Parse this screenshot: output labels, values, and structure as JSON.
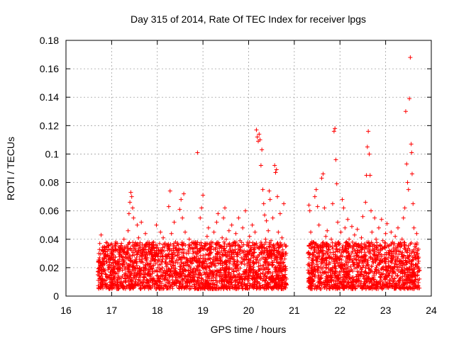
{
  "chart_data": {
    "type": "scatter",
    "title": "Day 315 of 2014, Rate Of TEC Index for receiver lpgs",
    "xlabel": "GPS time / hours",
    "ylabel": "ROTI / TECUs",
    "xlim": [
      16,
      24
    ],
    "ylim": [
      0,
      0.18
    ],
    "xticks": [
      "16",
      "17",
      "18",
      "19",
      "20",
      "21",
      "22",
      "23",
      "24"
    ],
    "xtick_values": [
      16,
      17,
      18,
      19,
      20,
      21,
      22,
      23,
      24
    ],
    "yticks": [
      "0",
      "0.02",
      "0.04",
      "0.06",
      "0.08",
      "0.1",
      "0.12",
      "0.14",
      "0.16",
      "0.18"
    ],
    "ytick_values": [
      0,
      0.02,
      0.04,
      0.06,
      0.08,
      0.1,
      0.12,
      0.14,
      0.16,
      0.18
    ],
    "grid": true,
    "marker": "+",
    "color": "#ff0000",
    "series": [
      {
        "name": "ROTI",
        "points": [
          [
            16.7,
            0.015
          ],
          [
            16.72,
            0.03
          ],
          [
            16.74,
            0.037
          ],
          [
            16.75,
            0.022
          ],
          [
            16.77,
            0.043
          ],
          [
            16.79,
            0.01
          ],
          [
            16.8,
            0.026
          ],
          [
            16.82,
            0.018
          ],
          [
            16.84,
            0.033
          ],
          [
            16.86,
            0.008
          ],
          [
            16.88,
            0.024
          ],
          [
            16.9,
            0.035
          ],
          [
            16.93,
            0.014
          ],
          [
            16.95,
            0.028
          ],
          [
            16.98,
            0.02
          ],
          [
            17.0,
            0.031
          ],
          [
            17.03,
            0.012
          ],
          [
            17.06,
            0.025
          ],
          [
            17.09,
            0.038
          ],
          [
            17.12,
            0.016
          ],
          [
            17.15,
            0.022
          ],
          [
            17.18,
            0.034
          ],
          [
            17.21,
            0.01
          ],
          [
            17.24,
            0.027
          ],
          [
            17.27,
            0.04
          ],
          [
            17.3,
            0.019
          ],
          [
            17.33,
            0.031
          ],
          [
            17.36,
            0.046
          ],
          [
            17.38,
            0.058
          ],
          [
            17.4,
            0.066
          ],
          [
            17.42,
            0.073
          ],
          [
            17.44,
            0.07
          ],
          [
            17.46,
            0.062
          ],
          [
            17.48,
            0.055
          ],
          [
            17.5,
            0.035
          ],
          [
            17.53,
            0.024
          ],
          [
            17.56,
            0.05
          ],
          [
            17.59,
            0.041
          ],
          [
            17.62,
            0.028
          ],
          [
            17.65,
            0.052
          ],
          [
            17.68,
            0.033
          ],
          [
            17.71,
            0.018
          ],
          [
            17.74,
            0.044
          ],
          [
            17.77,
            0.026
          ],
          [
            17.8,
            0.036
          ],
          [
            17.83,
            0.015
          ],
          [
            17.86,
            0.03
          ],
          [
            17.89,
            0.021
          ],
          [
            17.92,
            0.038
          ],
          [
            17.95,
            0.028
          ],
          [
            17.98,
            0.05
          ],
          [
            18.01,
            0.034
          ],
          [
            18.04,
            0.022
          ],
          [
            18.07,
            0.045
          ],
          [
            18.1,
            0.03
          ],
          [
            18.13,
            0.041
          ],
          [
            18.16,
            0.018
          ],
          [
            18.19,
            0.026
          ],
          [
            18.22,
            0.036
          ],
          [
            18.25,
            0.063
          ],
          [
            18.28,
            0.074
          ],
          [
            18.31,
            0.044
          ],
          [
            18.34,
            0.028
          ],
          [
            18.37,
            0.052
          ],
          [
            18.4,
            0.038
          ],
          [
            18.43,
            0.016
          ],
          [
            18.46,
            0.032
          ],
          [
            18.49,
            0.061
          ],
          [
            18.52,
            0.068
          ],
          [
            18.55,
            0.055
          ],
          [
            18.58,
            0.072
          ],
          [
            18.61,
            0.045
          ],
          [
            18.64,
            0.03
          ],
          [
            18.67,
            0.022
          ],
          [
            18.7,
            0.04
          ],
          [
            18.73,
            0.019
          ],
          [
            18.76,
            0.034
          ],
          [
            18.79,
            0.012
          ],
          [
            18.82,
            0.027
          ],
          [
            18.85,
            0.036
          ],
          [
            18.88,
            0.101
          ],
          [
            18.91,
            0.025
          ],
          [
            18.94,
            0.055
          ],
          [
            18.97,
            0.062
          ],
          [
            19.0,
            0.071
          ],
          [
            19.03,
            0.035
          ],
          [
            19.06,
            0.019
          ],
          [
            19.09,
            0.042
          ],
          [
            19.12,
            0.048
          ],
          [
            19.15,
            0.03
          ],
          [
            19.18,
            0.038
          ],
          [
            19.21,
            0.024
          ],
          [
            19.24,
            0.045
          ],
          [
            19.27,
            0.033
          ],
          [
            19.3,
            0.052
          ],
          [
            19.33,
            0.058
          ],
          [
            19.36,
            0.036
          ],
          [
            19.39,
            0.026
          ],
          [
            19.42,
            0.041
          ],
          [
            19.45,
            0.055
          ],
          [
            19.48,
            0.062
          ],
          [
            19.51,
            0.04
          ],
          [
            19.54,
            0.028
          ],
          [
            19.57,
            0.046
          ],
          [
            19.6,
            0.035
          ],
          [
            19.63,
            0.05
          ],
          [
            19.66,
            0.022
          ],
          [
            19.69,
            0.038
          ],
          [
            19.72,
            0.044
          ],
          [
            19.75,
            0.03
          ],
          [
            19.78,
            0.055
          ],
          [
            19.81,
            0.039
          ],
          [
            19.84,
            0.027
          ],
          [
            19.87,
            0.048
          ],
          [
            19.9,
            0.032
          ],
          [
            19.93,
            0.06
          ],
          [
            19.96,
            0.036
          ],
          [
            19.99,
            0.024
          ],
          [
            20.02,
            0.042
          ],
          [
            20.05,
            0.034
          ],
          [
            20.08,
            0.05
          ],
          [
            20.11,
            0.028
          ],
          [
            20.14,
            0.045
          ],
          [
            20.17,
            0.117
          ],
          [
            20.19,
            0.112
          ],
          [
            20.21,
            0.109
          ],
          [
            20.23,
            0.114
          ],
          [
            20.25,
            0.11
          ],
          [
            20.27,
            0.092
          ],
          [
            20.29,
            0.103
          ],
          [
            20.31,
            0.075
          ],
          [
            20.33,
            0.065
          ],
          [
            20.35,
            0.057
          ],
          [
            20.37,
            0.04
          ],
          [
            20.39,
            0.053
          ],
          [
            20.41,
            0.032
          ],
          [
            20.43,
            0.046
          ],
          [
            20.45,
            0.074
          ],
          [
            20.47,
            0.068
          ],
          [
            20.49,
            0.039
          ],
          [
            20.51,
            0.028
          ],
          [
            20.53,
            0.055
          ],
          [
            20.55,
            0.036
          ],
          [
            20.57,
            0.092
          ],
          [
            20.59,
            0.087
          ],
          [
            20.61,
            0.089
          ],
          [
            20.63,
            0.07
          ],
          [
            20.65,
            0.045
          ],
          [
            20.67,
            0.034
          ],
          [
            20.69,
            0.058
          ],
          [
            20.71,
            0.026
          ],
          [
            20.73,
            0.041
          ],
          [
            20.75,
            0.03
          ],
          [
            20.77,
            0.065
          ],
          [
            20.79,
            0.018
          ],
          [
            20.81,
            0.035
          ],
          [
            20.83,
            0.012
          ],
          [
            21.3,
            0.03
          ],
          [
            21.32,
            0.064
          ],
          [
            21.34,
            0.06
          ],
          [
            21.36,
            0.045
          ],
          [
            21.38,
            0.022
          ],
          [
            21.4,
            0.035
          ],
          [
            21.42,
            0.038
          ],
          [
            21.45,
            0.07
          ],
          [
            21.48,
            0.075
          ],
          [
            21.51,
            0.063
          ],
          [
            21.54,
            0.05
          ],
          [
            21.57,
            0.032
          ],
          [
            21.6,
            0.083
          ],
          [
            21.63,
            0.086
          ],
          [
            21.66,
            0.062
          ],
          [
            21.69,
            0.042
          ],
          [
            21.72,
            0.046
          ],
          [
            21.75,
            0.036
          ],
          [
            21.78,
            0.027
          ],
          [
            21.81,
            0.04
          ],
          [
            21.84,
            0.065
          ],
          [
            21.87,
            0.116
          ],
          [
            21.89,
            0.118
          ],
          [
            21.91,
            0.096
          ],
          [
            21.93,
            0.079
          ],
          [
            21.95,
            0.052
          ],
          [
            21.97,
            0.038
          ],
          [
            21.99,
            0.026
          ],
          [
            22.02,
            0.045
          ],
          [
            22.05,
            0.068
          ],
          [
            22.08,
            0.062
          ],
          [
            22.11,
            0.048
          ],
          [
            22.14,
            0.031
          ],
          [
            22.17,
            0.054
          ],
          [
            22.2,
            0.04
          ],
          [
            22.23,
            0.028
          ],
          [
            22.26,
            0.049
          ],
          [
            22.29,
            0.035
          ],
          [
            22.32,
            0.043
          ],
          [
            22.35,
            0.03
          ],
          [
            22.38,
            0.047
          ],
          [
            22.41,
            0.036
          ],
          [
            22.44,
            0.025
          ],
          [
            22.47,
            0.041
          ],
          [
            22.5,
            0.056
          ],
          [
            22.53,
            0.033
          ],
          [
            22.56,
            0.066
          ],
          [
            22.58,
            0.085
          ],
          [
            22.6,
            0.105
          ],
          [
            22.62,
            0.116
          ],
          [
            22.64,
            0.1
          ],
          [
            22.66,
            0.085
          ],
          [
            22.68,
            0.06
          ],
          [
            22.7,
            0.045
          ],
          [
            22.73,
            0.032
          ],
          [
            22.76,
            0.055
          ],
          [
            22.79,
            0.04
          ],
          [
            22.82,
            0.028
          ],
          [
            22.85,
            0.048
          ],
          [
            22.88,
            0.036
          ],
          [
            22.91,
            0.054
          ],
          [
            22.94,
            0.039
          ],
          [
            22.97,
            0.026
          ],
          [
            23.0,
            0.044
          ],
          [
            23.03,
            0.051
          ],
          [
            23.06,
            0.035
          ],
          [
            23.09,
            0.03
          ],
          [
            23.12,
            0.045
          ],
          [
            23.15,
            0.038
          ],
          [
            23.18,
            0.027
          ],
          [
            23.21,
            0.042
          ],
          [
            23.24,
            0.033
          ],
          [
            23.27,
            0.048
          ],
          [
            23.3,
            0.036
          ],
          [
            23.33,
            0.025
          ],
          [
            23.36,
            0.04
          ],
          [
            23.39,
            0.055
          ],
          [
            23.42,
            0.062
          ],
          [
            23.44,
            0.13
          ],
          [
            23.46,
            0.093
          ],
          [
            23.48,
            0.08
          ],
          [
            23.5,
            0.075
          ],
          [
            23.52,
            0.139
          ],
          [
            23.54,
            0.168
          ],
          [
            23.56,
            0.107
          ],
          [
            23.57,
            0.101
          ],
          [
            23.58,
            0.086
          ],
          [
            23.6,
            0.065
          ],
          [
            23.62,
            0.048
          ],
          [
            23.64,
            0.035
          ],
          [
            23.66,
            0.026
          ],
          [
            23.68,
            0.044
          ],
          [
            23.7,
            0.032
          ],
          [
            23.72,
            0.02
          ],
          [
            23.74,
            0.012
          ]
        ]
      }
    ]
  }
}
